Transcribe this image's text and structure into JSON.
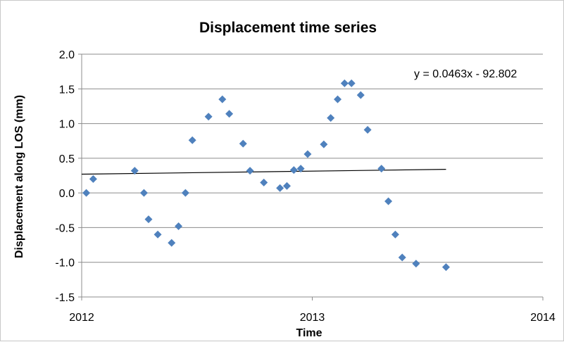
{
  "chart_data": {
    "type": "scatter",
    "title": "Displacement time series",
    "xlabel": "Time",
    "ylabel": "Displacement along LOS (mm)",
    "xlim": [
      2012,
      2014
    ],
    "ylim": [
      -1.5,
      2.0
    ],
    "x_ticks": [
      2012,
      2013,
      2014
    ],
    "x_tick_labels": [
      "2012",
      "2013",
      "2014"
    ],
    "y_ticks": [
      2.0,
      1.5,
      1.0,
      0.5,
      0.0,
      -0.5,
      -1.0,
      -1.5
    ],
    "y_tick_labels": [
      "2.0",
      "1.5",
      "1.0",
      "0.5",
      "0.0",
      "-0.5",
      "-1.0",
      "-1.5"
    ],
    "grid": "horizontal",
    "marker": "diamond",
    "marker_color": "#4f81bd",
    "series": [
      {
        "points": [
          {
            "x": 2012.02,
            "y": 0.0
          },
          {
            "x": 2012.05,
            "y": 0.2
          },
          {
            "x": 2012.23,
            "y": 0.32
          },
          {
            "x": 2012.27,
            "y": 0.0
          },
          {
            "x": 2012.29,
            "y": -0.38
          },
          {
            "x": 2012.33,
            "y": -0.6
          },
          {
            "x": 2012.39,
            "y": -0.72
          },
          {
            "x": 2012.42,
            "y": -0.48
          },
          {
            "x": 2012.45,
            "y": 0.0
          },
          {
            "x": 2012.48,
            "y": 0.76
          },
          {
            "x": 2012.55,
            "y": 1.1
          },
          {
            "x": 2012.61,
            "y": 1.35
          },
          {
            "x": 2012.64,
            "y": 1.14
          },
          {
            "x": 2012.7,
            "y": 0.71
          },
          {
            "x": 2012.73,
            "y": 0.32
          },
          {
            "x": 2012.79,
            "y": 0.15
          },
          {
            "x": 2012.86,
            "y": 0.07
          },
          {
            "x": 2012.89,
            "y": 0.1
          },
          {
            "x": 2012.92,
            "y": 0.33
          },
          {
            "x": 2012.95,
            "y": 0.35
          },
          {
            "x": 2012.98,
            "y": 0.56
          },
          {
            "x": 2013.05,
            "y": 0.7
          },
          {
            "x": 2013.08,
            "y": 1.08
          },
          {
            "x": 2013.11,
            "y": 1.35
          },
          {
            "x": 2013.14,
            "y": 1.58
          },
          {
            "x": 2013.17,
            "y": 1.58
          },
          {
            "x": 2013.21,
            "y": 1.41
          },
          {
            "x": 2013.24,
            "y": 0.91
          },
          {
            "x": 2013.3,
            "y": 0.35
          },
          {
            "x": 2013.33,
            "y": -0.12
          },
          {
            "x": 2013.36,
            "y": -0.6
          },
          {
            "x": 2013.39,
            "y": -0.93
          },
          {
            "x": 2013.45,
            "y": -1.02
          },
          {
            "x": 2013.58,
            "y": -1.07
          }
        ]
      }
    ],
    "trendline": {
      "type": "linear",
      "equation_label": "y = 0.0463x - 92.802",
      "x_range": [
        2012.0,
        2013.58
      ],
      "y_range": [
        0.27,
        0.34
      ],
      "color": "#000000"
    }
  }
}
